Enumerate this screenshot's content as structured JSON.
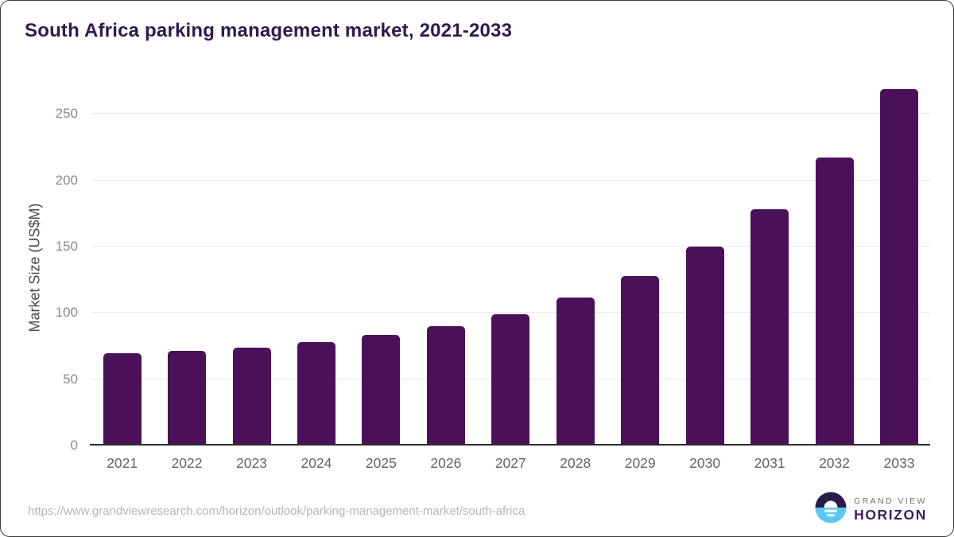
{
  "title": "South Africa parking management market, 2021-2033",
  "footer": {
    "source_url": "https://www.grandviewresearch.com/horizon/outlook/parking-management-market/south-africa"
  },
  "logo": {
    "line1": "GRAND VIEW",
    "line2": "HORIZON",
    "mark": "sunrise-over-water-icon"
  },
  "colors": {
    "bar": "#4A1158",
    "title": "#321850",
    "axis_line": "#2B2B2B",
    "gridline": "#E9E9EC",
    "y_tick_label": "#8A8A8A",
    "x_tick_label": "#646464",
    "y_axis_title": "#4A4A4A",
    "url_text": "#B5B5B5",
    "logo_dark": "#2B1A47",
    "logo_blue": "#5AC8F2",
    "logo_grandview_text": "#716C7C",
    "logo_horizon_text": "#3B1F5E"
  },
  "chart_data": {
    "type": "bar",
    "title": "South Africa parking management market, 2021-2033",
    "categories": [
      "2021",
      "2022",
      "2023",
      "2024",
      "2025",
      "2026",
      "2027",
      "2028",
      "2029",
      "2030",
      "2031",
      "2032",
      "2033"
    ],
    "values": [
      69.5,
      71.5,
      74,
      78,
      83.5,
      90,
      99,
      111.5,
      128,
      150,
      178,
      217,
      269
    ],
    "xlabel": "",
    "ylabel": "Market Size (US$M)",
    "ylim": [
      0,
      280
    ],
    "yticks": [
      0,
      50,
      100,
      150,
      200,
      250
    ],
    "grid": true,
    "legend": false,
    "bar_color": "#4A1158"
  }
}
